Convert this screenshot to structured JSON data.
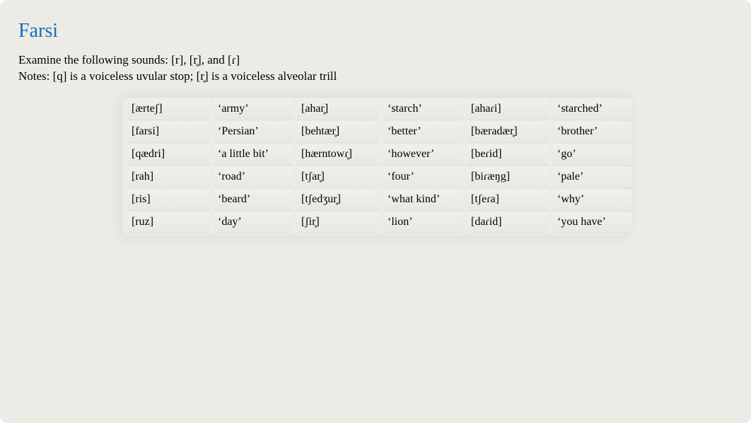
{
  "title": "Farsi",
  "intro_line1": "Examine the following sounds: [r], [r̥], and [ɾ]",
  "intro_line2": "Notes: [q] is a voiceless uvular stop; [r̥] is a voiceless alveolar trill",
  "colors": {
    "card_bg": "#ecebe6",
    "title": "#1a6bb8",
    "text": "#000000",
    "cell_top": "#f1efe9",
    "cell_bottom": "#e9e7e1"
  },
  "columns": [
    "phon1",
    "gloss1",
    "phon2",
    "gloss2",
    "phon3",
    "gloss3"
  ],
  "rows": [
    {
      "phon1": "[ærteʃ]",
      "gloss1": "‘army’",
      "phon2": "[ahar̥]",
      "gloss2": "‘starch’",
      "phon3": "[ahaɾi]",
      "gloss3": "‘starched’"
    },
    {
      "phon1": "[farsi]",
      "gloss1": "‘Persian’",
      "phon2": "[behtær̥]",
      "gloss2": "‘better’",
      "phon3": "[bæradær̥]",
      "gloss3": "‘brother’"
    },
    {
      "phon1": "[qædri]",
      "gloss1": "‘a little bit’",
      "phon2": "[hærntowɾ̥]",
      "gloss2": "‘however’",
      "phon3": "[beɾid]",
      "gloss3": "‘go’"
    },
    {
      "phon1": "[rah]",
      "gloss1": "‘road’",
      "phon2": "[tʃar̥]",
      "gloss2": "‘four’",
      "phon3": "[biɾæŋg]",
      "gloss3": "‘pale’"
    },
    {
      "phon1": "[ris]",
      "gloss1": "‘beard’",
      "phon2": "[tʃedʒur̥]",
      "gloss2": "‘what kind’",
      "phon3": "[tʃeɾa]",
      "gloss3": "‘why’"
    },
    {
      "phon1": "[ruz]",
      "gloss1": "‘day’",
      "phon2": "[ʃir̥]",
      "gloss2": "‘lion’",
      "phon3": "[daɾid]",
      "gloss3": "‘you have’"
    }
  ]
}
